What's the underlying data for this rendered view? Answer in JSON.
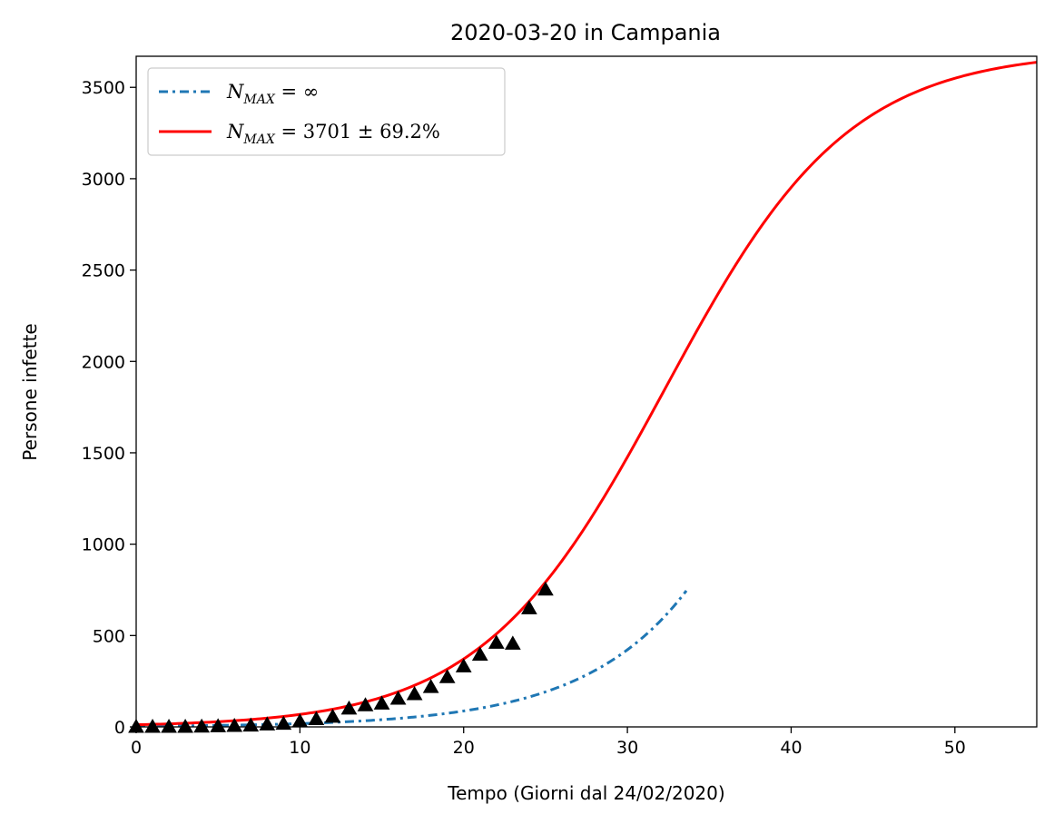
{
  "chart_data": {
    "type": "line",
    "title": "2020-03-20 in Campania",
    "xlabel": "Tempo (Giorni dal 24/02/2020)",
    "ylabel": "Persone infette",
    "xlim": [
      0,
      55
    ],
    "ylim": [
      0,
      3670
    ],
    "xticks": [
      0,
      10,
      20,
      30,
      40,
      50
    ],
    "yticks": [
      0,
      500,
      1000,
      1500,
      2000,
      2500,
      3000,
      3500
    ],
    "grid": false,
    "legend_position": "top-left",
    "series": [
      {
        "name_main": "N",
        "name_sub": "MAX",
        "name_rest": " = ∞",
        "kind": "exponential-fit",
        "style": "dash-dot",
        "color": "#1f77b4",
        "model": {
          "a": 3.7,
          "b": 0.1579
        },
        "x_range": [
          0,
          33.6
        ]
      },
      {
        "name_main": "N",
        "name_sub": "MAX",
        "name_rest": " = 3701 ± 69.2%",
        "kind": "logistic-fit",
        "style": "solid",
        "color": "#ff0000",
        "model": {
          "K": 3701,
          "r": 0.1782,
          "t0": 32.3
        },
        "x_range": [
          0,
          55
        ]
      },
      {
        "name": "",
        "kind": "observed",
        "marker": "triangle",
        "color": "#000000",
        "x": [
          0,
          1,
          2,
          3,
          4,
          5,
          6,
          7,
          8,
          9,
          10,
          11,
          12,
          13,
          14,
          15,
          16,
          17,
          18,
          19,
          20,
          21,
          22,
          23,
          24,
          25
        ],
        "y": [
          0,
          0,
          0,
          0,
          1,
          3,
          5,
          7,
          13,
          17,
          30,
          42,
          55,
          100,
          118,
          127,
          154,
          179,
          218,
          272,
          331,
          395,
          460,
          455,
          649,
          751
        ]
      }
    ]
  }
}
